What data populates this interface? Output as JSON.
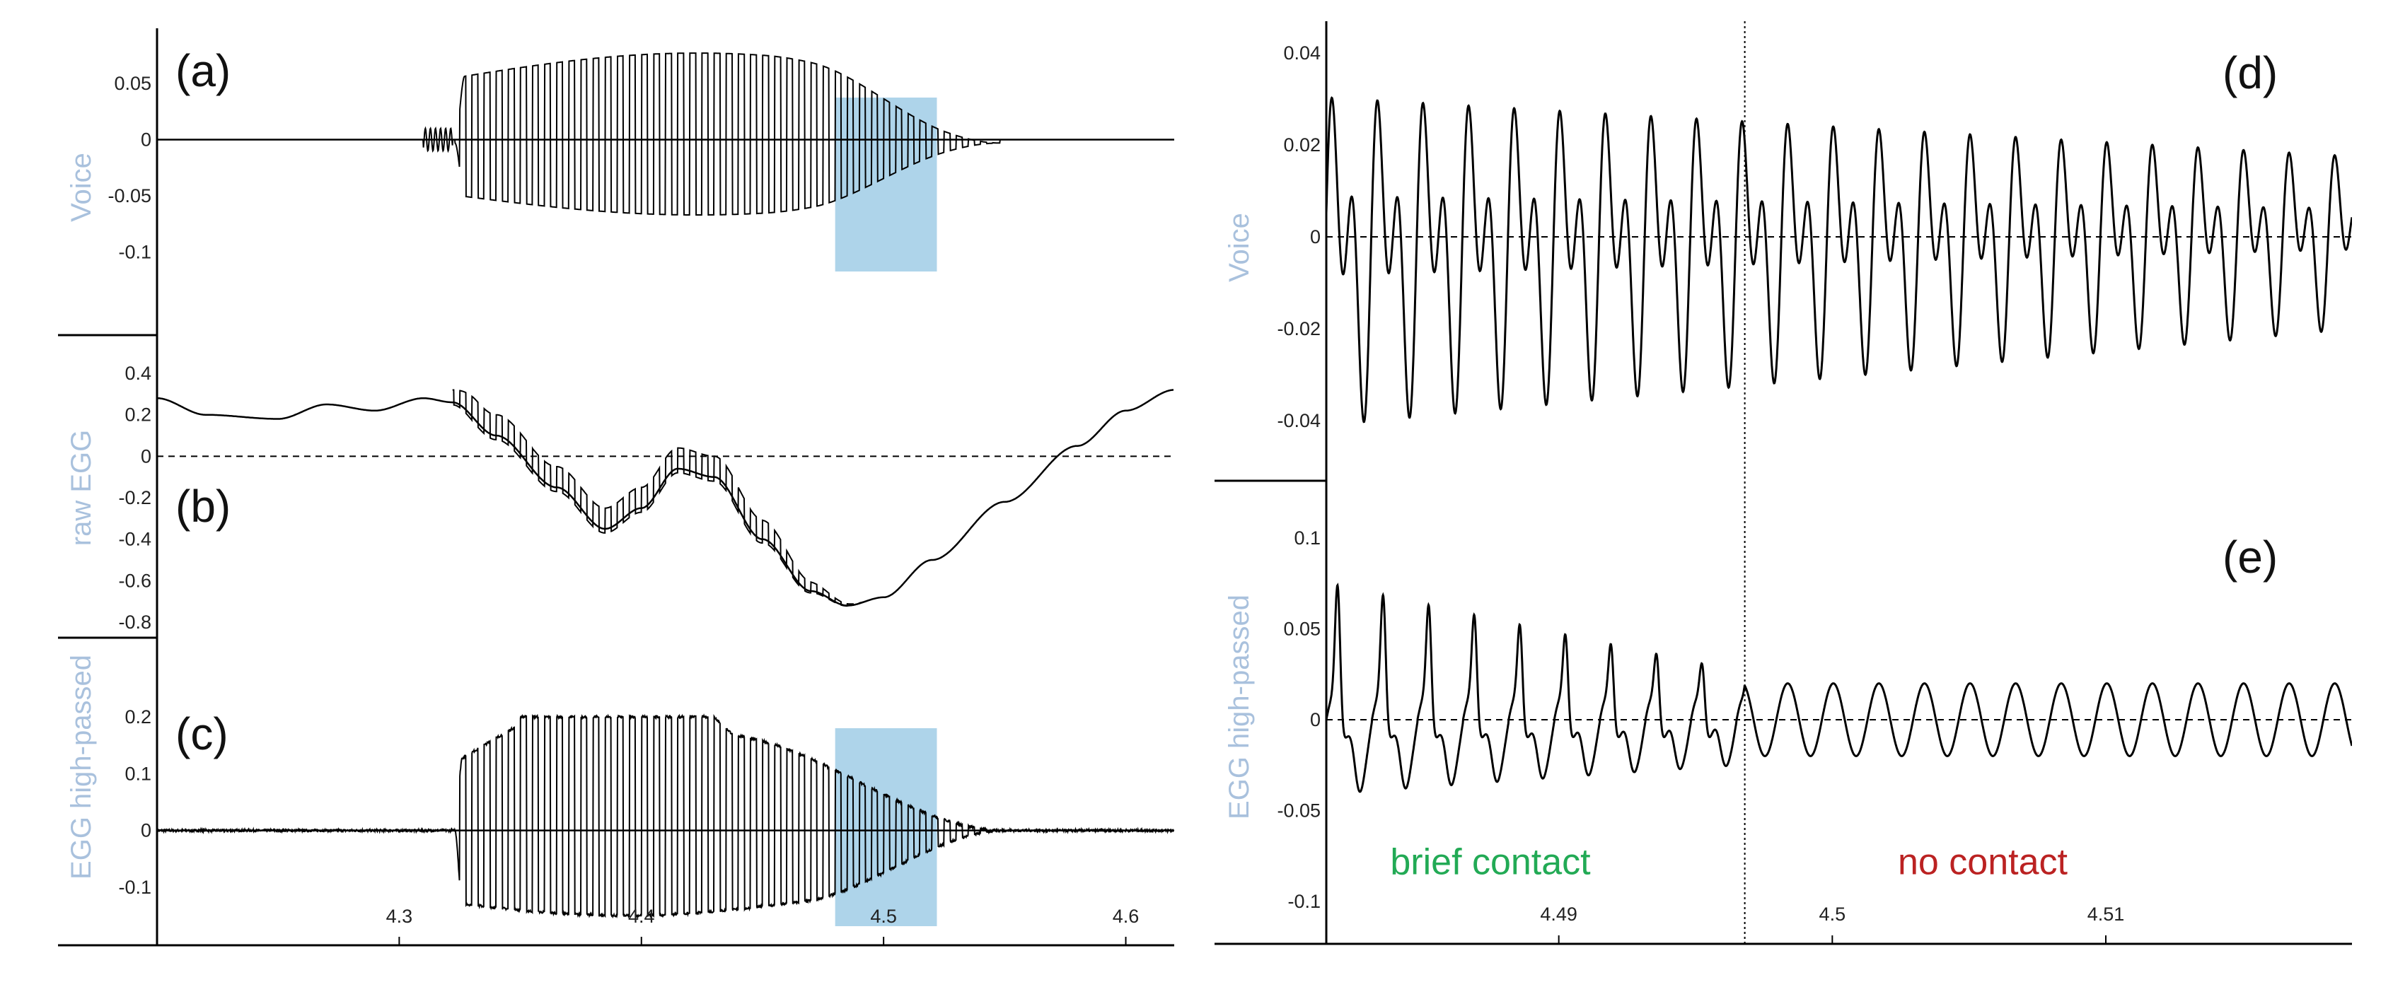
{
  "colors": {
    "trace": "#000000",
    "axis_label": "#a9c1dd",
    "highlight": "#aed4ea",
    "brief_contact": "#22aa55",
    "no_contact": "#bb2222"
  },
  "chart_data": [
    {
      "panel": "(a)",
      "type": "line",
      "ylabel": "Voice",
      "yticks": [
        "0.05",
        "0",
        "-0.05",
        "-0.1"
      ],
      "ylim": [
        -0.1,
        0.08
      ],
      "xlim": [
        4.2,
        4.62
      ],
      "zero_line": "solid",
      "signal": {
        "onset": 4.323,
        "offset": 4.548,
        "peak_amplitude": 0.055,
        "mean_offset": -0.003,
        "f0_hz": 200
      },
      "highlight": [
        4.48,
        4.522
      ]
    },
    {
      "panel": "(b)",
      "type": "line",
      "ylabel": "raw EGG",
      "yticks": [
        "0.4",
        "0.2",
        "0",
        "-0.2",
        "-0.4",
        "-0.6",
        "-0.8"
      ],
      "ylim": [
        -0.8,
        0.45
      ],
      "xlim": [
        4.2,
        4.62
      ],
      "zero_line": "dashed",
      "baseline_x": [
        4.2,
        4.22,
        4.25,
        4.27,
        4.29,
        4.31,
        4.322,
        4.34,
        4.365,
        4.385,
        4.4,
        4.415,
        4.43,
        4.45,
        4.47,
        4.485,
        4.5,
        4.52,
        4.55,
        4.58,
        4.6,
        4.62
      ],
      "baseline_y": [
        0.28,
        0.2,
        0.18,
        0.25,
        0.22,
        0.28,
        0.26,
        0.1,
        -0.15,
        -0.35,
        -0.25,
        -0.06,
        -0.1,
        -0.4,
        -0.65,
        -0.72,
        -0.68,
        -0.5,
        -0.22,
        0.05,
        0.22,
        0.32
      ],
      "vibration": {
        "onset": 4.322,
        "offset": 4.495,
        "amplitude": 0.1
      }
    },
    {
      "panel": "(c)",
      "type": "line",
      "ylabel": "EGG high-passed",
      "yticks": [
        "0.2",
        "0.1",
        "0",
        "-0.1"
      ],
      "ylim": [
        -0.15,
        0.25
      ],
      "xlim": [
        4.2,
        4.62
      ],
      "xticks": [
        "4.3",
        "4.4",
        "4.5",
        "4.6"
      ],
      "zero_line": "solid",
      "signal": {
        "onset": 4.323,
        "offset": 4.55,
        "pos_peak": 0.2,
        "neg_peak": 0.15,
        "f0_hz": 200
      },
      "highlight": [
        4.48,
        4.522
      ]
    },
    {
      "panel": "(d)",
      "type": "line",
      "ylabel": "Voice",
      "yticks": [
        "0.04",
        "0.02",
        "0",
        "-0.02",
        "-0.04"
      ],
      "ylim": [
        -0.05,
        0.045
      ],
      "xlim": [
        4.4815,
        4.519
      ],
      "zero_line": "dashed",
      "signal": {
        "f0_hz": 600,
        "start_amplitude": 0.038,
        "end_amplitude": 0.02
      }
    },
    {
      "panel": "(e)",
      "type": "line",
      "ylabel": "EGG high-passed",
      "yticks": [
        "0.1",
        "0.05",
        "0",
        "-0.05",
        "-0.1"
      ],
      "ylim": [
        -0.12,
        0.11
      ],
      "xlim": [
        4.4815,
        4.519
      ],
      "xticks": [
        "4.49",
        "4.5",
        "4.51"
      ],
      "zero_line": "dashed",
      "signal": {
        "f0_hz": 600,
        "contact_end": 4.4968,
        "sine_amplitude": 0.02
      },
      "marker_x": 4.4968,
      "annotations": [
        {
          "text": "brief contact",
          "x": 4.4875,
          "y": -0.085
        },
        {
          "text": "no contact",
          "x": 4.5055,
          "y": -0.085
        }
      ]
    }
  ]
}
